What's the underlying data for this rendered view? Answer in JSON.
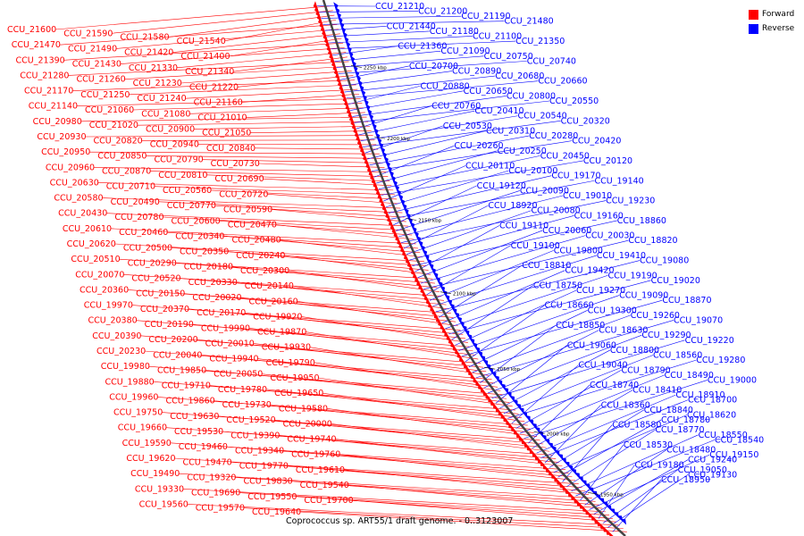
{
  "caption": "Coprococcus sp. ART55/1 draft genome. - 0..3123007",
  "legend": [
    {
      "label": "Forward",
      "color": "#ff0000"
    },
    {
      "label": "Reverse",
      "color": "#0000ff"
    }
  ],
  "colors": {
    "forward": "#ff0000",
    "reverse": "#0000ff",
    "backbone": "#444444"
  },
  "ticks": [
    "2250 kbp",
    "2200 kbp",
    "2150 kbp",
    "2100 kbp",
    "2050 kbp",
    "2000 kbp",
    "1950 kbp"
  ],
  "forward_labels": [
    "CCU_21600",
    "CCU_21590",
    "CCU_21580",
    "CCU_21540",
    "CCU_21470",
    "CCU_21490",
    "CCU_21420",
    "CCU_21400",
    "CCU_21390",
    "CCU_21430",
    "CCU_21330",
    "CCU_21340",
    "CCU_21280",
    "CCU_21260",
    "CCU_21230",
    "CCU_21220",
    "CCU_21170",
    "CCU_21250",
    "CCU_21240",
    "CCU_21160",
    "CCU_21140",
    "CCU_21060",
    "CCU_21080",
    "CCU_21010",
    "CCU_20980",
    "CCU_21020",
    "CCU_20900",
    "CCU_21050",
    "CCU_20930",
    "CCU_20820",
    "CCU_20940",
    "CCU_20840",
    "CCU_20950",
    "CCU_20850",
    "CCU_20790",
    "CCU_20730",
    "CCU_20960",
    "CCU_20870",
    "CCU_20810",
    "CCU_20690",
    "CCU_20630",
    "CCU_20710",
    "CCU_20560",
    "CCU_20720",
    "CCU_20580",
    "CCU_20490",
    "CCU_20770",
    "CCU_20590",
    "CCU_20430",
    "CCU_20780",
    "CCU_20600",
    "CCU_20470",
    "CCU_20610",
    "CCU_20460",
    "CCU_20340",
    "CCU_20480",
    "CCU_20620",
    "CCU_20500",
    "CCU_20350",
    "CCU_20240",
    "CCU_20510",
    "CCU_20290",
    "CCU_20180",
    "CCU_20300",
    "CCU_20070",
    "CCU_20520",
    "CCU_20330",
    "CCU_20140",
    "CCU_20360",
    "CCU_20150",
    "CCU_20020",
    "CCU_20160",
    "CCU_19970",
    "CCU_20370",
    "CCU_20170",
    "CCU_19920",
    "CCU_20380",
    "CCU_20190",
    "CCU_19990",
    "CCU_19870",
    "CCU_20390",
    "CCU_20200",
    "CCU_20010",
    "CCU_19930",
    "CCU_20230",
    "CCU_20040",
    "CCU_19940",
    "CCU_19790",
    "CCU_19980",
    "CCU_19850",
    "CCU_20050",
    "CCU_19950",
    "CCU_19880",
    "CCU_19710",
    "CCU_19780",
    "CCU_19650",
    "CCU_19960",
    "CCU_19860",
    "CCU_19730",
    "CCU_19580",
    "CCU_19750",
    "CCU_19630",
    "CCU_19520",
    "CCU_20000",
    "CCU_19660",
    "CCU_19530",
    "CCU_19390",
    "CCU_19740",
    "CCU_19590",
    "CCU_19460",
    "CCU_19340",
    "CCU_19760",
    "CCU_19620",
    "CCU_19470",
    "CCU_19770",
    "CCU_19610",
    "CCU_19490",
    "CCU_19320",
    "CCU_19830",
    "CCU_19540",
    "CCU_19330",
    "CCU_19690",
    "CCU_19550",
    "CCU_19700",
    "CCU_19560",
    "CCU_19570",
    "CCU_19640"
  ],
  "reverse_labels": [
    "CCU_21210",
    "CCU_21200",
    "CCU_21190",
    "CCU_21480",
    "CCU_21440",
    "CCU_21180",
    "CCU_21100",
    "CCU_21350",
    "CCU_21360",
    "CCU_21090",
    "CCU_20750",
    "CCU_20740",
    "CCU_20700",
    "CCU_20890",
    "CCU_20680",
    "CCU_20660",
    "CCU_20880",
    "CCU_20650",
    "CCU_20800",
    "CCU_20550",
    "CCU_20760",
    "CCU_20410",
    "CCU_20540",
    "CCU_20320",
    "CCU_20530",
    "CCU_20310",
    "CCU_20280",
    "CCU_20420",
    "CCU_20260",
    "CCU_20250",
    "CCU_20450",
    "CCU_20120",
    "CCU_20110",
    "CCU_20100",
    "CCU_19170",
    "CCU_19140",
    "CCU_19120",
    "CCU_20090",
    "CCU_19010",
    "CCU_19230",
    "CCU_18920",
    "CCU_20080",
    "CCU_19160",
    "CCU_18860",
    "CCU_19110",
    "CCU_20060",
    "CCU_20030",
    "CCU_18820",
    "CCU_19100",
    "CCU_19800",
    "CCU_19410",
    "CCU_19080",
    "CCU_18810",
    "CCU_19420",
    "CCU_19190",
    "CCU_19020",
    "CCU_18750",
    "CCU_19270",
    "CCU_19090",
    "CCU_18870",
    "CCU_18660",
    "CCU_19300",
    "CCU_19260",
    "CCU_19070",
    "CCU_18850",
    "CCU_18630",
    "CCU_19290",
    "CCU_19220",
    "CCU_19060",
    "CCU_18800",
    "CCU_18560",
    "CCU_19280",
    "CCU_19040",
    "CCU_18790",
    "CCU_18490",
    "CCU_19000",
    "CCU_18740",
    "CCU_18410",
    "CCU_18910",
    "CCU_18700",
    "CCU_18360",
    "CCU_18840",
    "CCU_18620",
    "CCU_18780",
    "CCU_18580",
    "CCU_18770",
    "CCU_18550",
    "CCU_18540",
    "CCU_18530",
    "CCU_18480",
    "CCU_19150",
    "CCU_19240",
    "CCU_19180",
    "CCU_19050",
    "CCU_19130",
    "CCU_18950"
  ]
}
